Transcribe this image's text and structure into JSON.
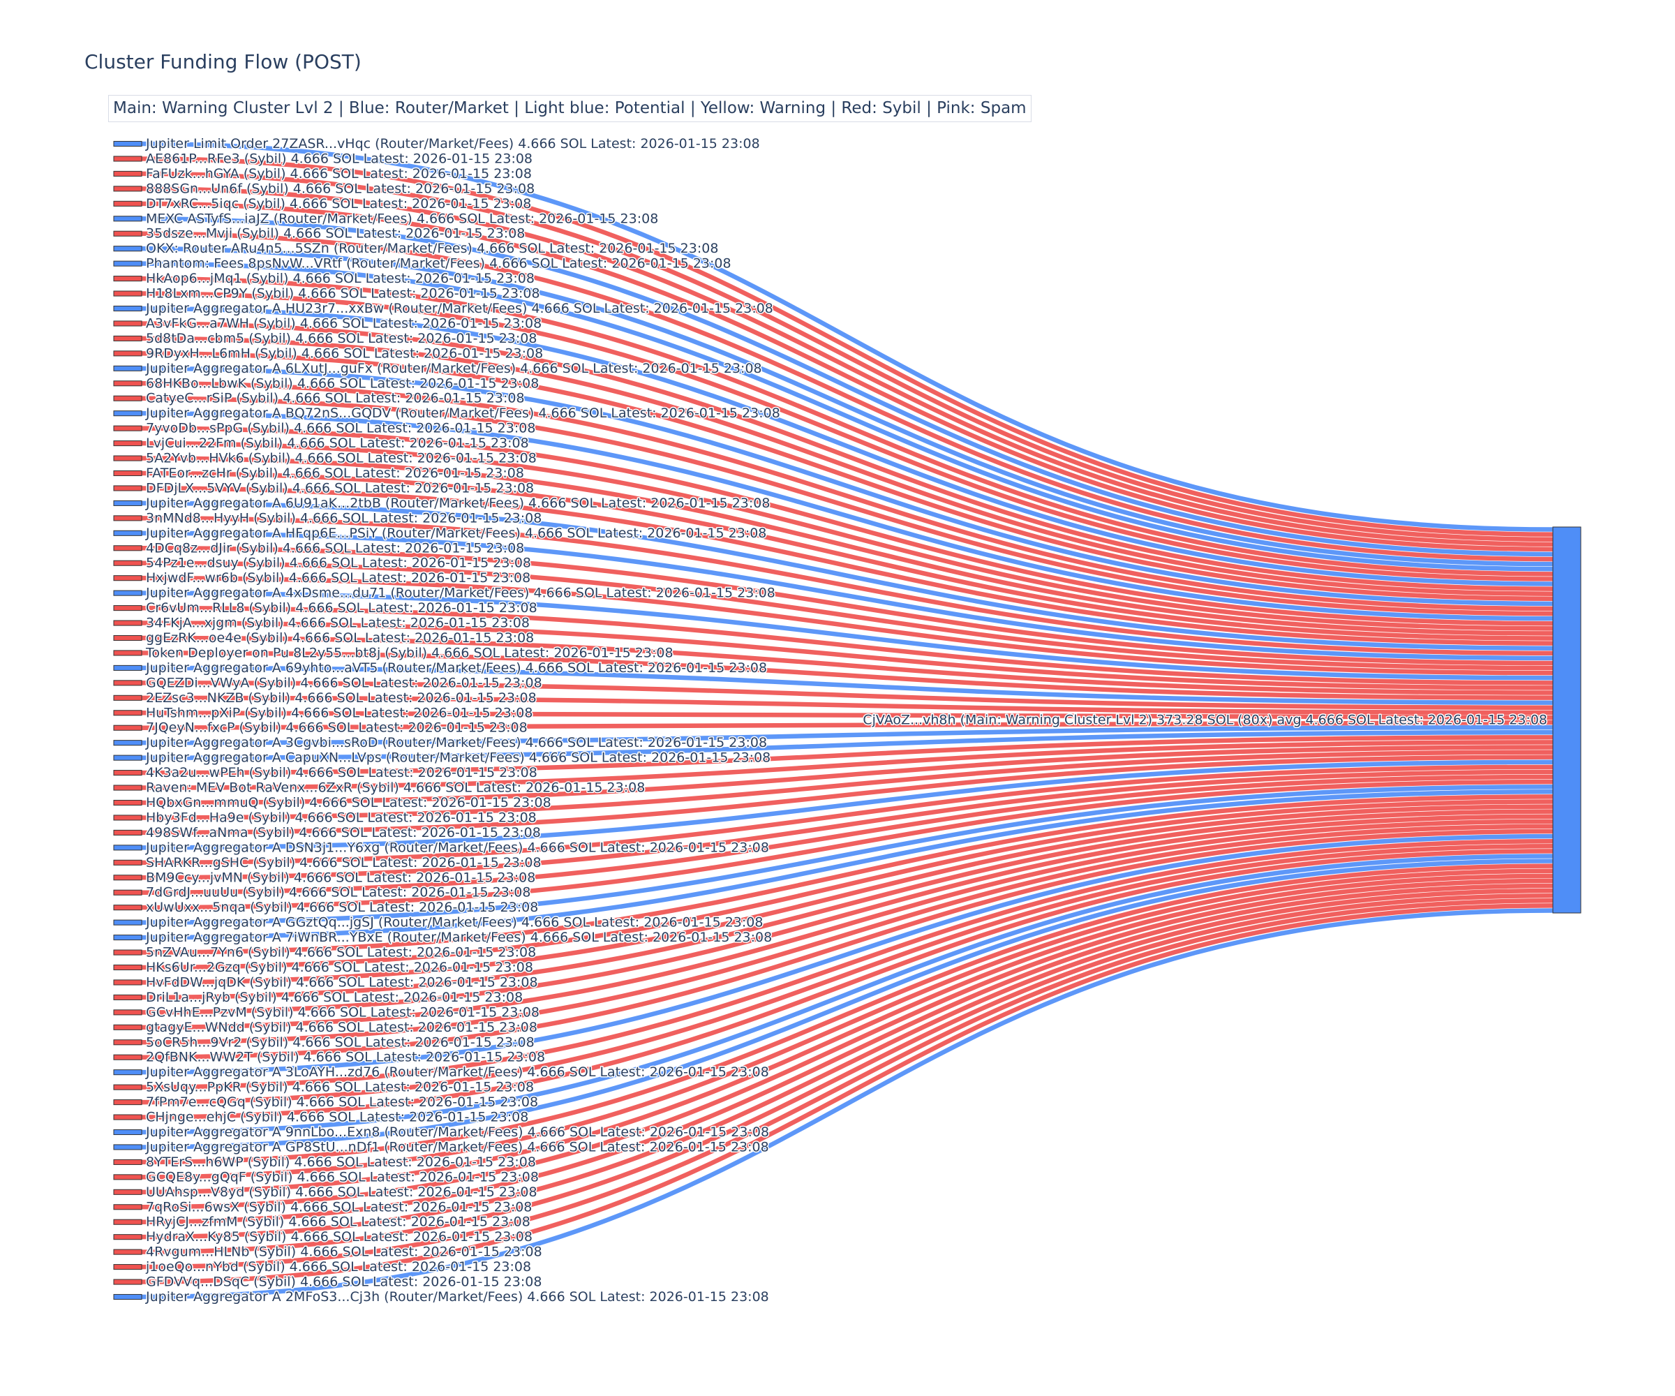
{
  "chart_data": {
    "type": "sankey",
    "title": "Cluster Funding Flow (POST)",
    "annotation": "Main: Warning Cluster Lvl 2  |  Blue: Router/Market | Light blue: Potential | Yellow: Warning | Red: Sybil | Pink: Spam",
    "colors": {
      "router": "#4f8ef7",
      "sybil": "#ef5350",
      "main": "#4f8ef7",
      "text": "#2a3f5f"
    },
    "link_value": 4.666,
    "target": {
      "label": "CjVAoZ...vh8h (Main: Warning Cluster Lvl 2) 373.28 SOL (80x) avg 4.666 SOL Latest: 2026-01-15 23:08",
      "category": "main"
    },
    "sources": [
      {
        "label": "Jupiter Limit Order  27ZASR...vHqc (Router/Market/Fees) 4.666 SOL Latest: 2026-01-15 23:08",
        "category": "router"
      },
      {
        "label": "AE861P...RFe3 (Sybil) 4.666 SOL Latest: 2026-01-15 23:08",
        "category": "sybil"
      },
      {
        "label": "FaFUzk...hGYA (Sybil) 4.666 SOL Latest: 2026-01-15 23:08",
        "category": "sybil"
      },
      {
        "label": "888SGn...Un6f (Sybil) 4.666 SOL Latest: 2026-01-15 23:08",
        "category": "sybil"
      },
      {
        "label": "DT7xRC...5iqc (Sybil) 4.666 SOL Latest: 2026-01-15 23:08",
        "category": "sybil"
      },
      {
        "label": "MEXC ASTyfS...iaJZ (Router/Market/Fees) 4.666 SOL Latest: 2026-01-15 23:08",
        "category": "router"
      },
      {
        "label": "35dsze...Mvji (Sybil) 4.666 SOL Latest: 2026-01-15 23:08",
        "category": "sybil"
      },
      {
        "label": "OKX: Router ARu4n5...5SZn (Router/Market/Fees) 4.666 SOL Latest: 2026-01-15 23:08",
        "category": "router"
      },
      {
        "label": "Phantom: Fees 8psNvW...VRtf (Router/Market/Fees) 4.666 SOL Latest: 2026-01-15 23:08",
        "category": "router"
      },
      {
        "label": "HkAop6...jMq1 (Sybil) 4.666 SOL Latest: 2026-01-15 23:08",
        "category": "sybil"
      },
      {
        "label": "H18Lxm...CP9Y (Sybil) 4.666 SOL Latest: 2026-01-15 23:08",
        "category": "sybil"
      },
      {
        "label": "Jupiter Aggregator A HU23r7...xxBw (Router/Market/Fees) 4.666 SOL Latest: 2026-01-15 23:08",
        "category": "router"
      },
      {
        "label": "A3vFkG...a7WH (Sybil) 4.666 SOL Latest: 2026-01-15 23:08",
        "category": "sybil"
      },
      {
        "label": "5d8tDa...cbm5 (Sybil) 4.666 SOL Latest: 2026-01-15 23:08",
        "category": "sybil"
      },
      {
        "label": "9RDyxH...L6mH (Sybil) 4.666 SOL Latest: 2026-01-15 23:08",
        "category": "sybil"
      },
      {
        "label": "Jupiter Aggregator A 6LXutJ...guFx (Router/Market/Fees) 4.666 SOL Latest: 2026-01-15 23:08",
        "category": "router"
      },
      {
        "label": "68HKBo...LbwK (Sybil) 4.666 SOL Latest: 2026-01-15 23:08",
        "category": "sybil"
      },
      {
        "label": "CatyeC...rSiP (Sybil) 4.666 SOL Latest: 2026-01-15 23:08",
        "category": "sybil"
      },
      {
        "label": "Jupiter Aggregator A BQ72nS...GQDV (Router/Market/Fees) 4.666 SOL Latest: 2026-01-15 23:08",
        "category": "router"
      },
      {
        "label": "7yvoDb...sPpG (Sybil) 4.666 SOL Latest: 2026-01-15 23:08",
        "category": "sybil"
      },
      {
        "label": "LvjCui...22Fm (Sybil) 4.666 SOL Latest: 2026-01-15 23:08",
        "category": "sybil"
      },
      {
        "label": "5A2Yvb...HVk6 (Sybil) 4.666 SOL Latest: 2026-01-15 23:08",
        "category": "sybil"
      },
      {
        "label": "FATEor...zcHr (Sybil) 4.666 SOL Latest: 2026-01-15 23:08",
        "category": "sybil"
      },
      {
        "label": "DFDjLX...5VYV (Sybil) 4.666 SOL Latest: 2026-01-15 23:08",
        "category": "sybil"
      },
      {
        "label": "Jupiter Aggregator A 6U91aK...2tbB (Router/Market/Fees) 4.666 SOL Latest: 2026-01-15 23:08",
        "category": "router"
      },
      {
        "label": "3nMNd8...HyyH (Sybil) 4.666 SOL Latest: 2026-01-15 23:08",
        "category": "sybil"
      },
      {
        "label": "Jupiter Aggregator A HFqp6E...PSiY (Router/Market/Fees) 4.666 SOL Latest: 2026-01-15 23:08",
        "category": "router"
      },
      {
        "label": "4DCq8z...dJir (Sybil) 4.666 SOL Latest: 2026-01-15 23:08",
        "category": "sybil"
      },
      {
        "label": "54Pz1e...dsuy (Sybil) 4.666 SOL Latest: 2026-01-15 23:08",
        "category": "sybil"
      },
      {
        "label": "HxjwdF...wr6b (Sybil) 4.666 SOL Latest: 2026-01-15 23:08",
        "category": "sybil"
      },
      {
        "label": "Jupiter Aggregator A 4xDsme...du71 (Router/Market/Fees) 4.666 SOL Latest: 2026-01-15 23:08",
        "category": "router"
      },
      {
        "label": "Cr6vUm...RLL8 (Sybil) 4.666 SOL Latest: 2026-01-15 23:08",
        "category": "sybil"
      },
      {
        "label": "34FKjA...xjgm (Sybil) 4.666 SOL Latest: 2026-01-15 23:08",
        "category": "sybil"
      },
      {
        "label": "ggEzRK...oe4e (Sybil) 4.666 SOL Latest: 2026-01-15 23:08",
        "category": "sybil"
      },
      {
        "label": "Token Deployer on Pu 8L2y55...bt8j (Sybil) 4.666 SOL Latest: 2026-01-15 23:08",
        "category": "sybil"
      },
      {
        "label": "Jupiter Aggregator A 69yhto...aVT5 (Router/Market/Fees) 4.666 SOL Latest: 2026-01-15 23:08",
        "category": "router"
      },
      {
        "label": "GQEZDi...VWyA (Sybil) 4.666 SOL Latest: 2026-01-15 23:08",
        "category": "sybil"
      },
      {
        "label": "2EZsc3...NKZB (Sybil) 4.666 SOL Latest: 2026-01-15 23:08",
        "category": "sybil"
      },
      {
        "label": "HuTshm...pXiP (Sybil) 4.666 SOL Latest: 2026-01-15 23:08",
        "category": "sybil"
      },
      {
        "label": "7JQeyN...fxcP (Sybil) 4.666 SOL Latest: 2026-01-15 23:08",
        "category": "sybil"
      },
      {
        "label": "Jupiter Aggregator A 3Cgvbi...sRoD (Router/Market/Fees) 4.666 SOL Latest: 2026-01-15 23:08",
        "category": "router"
      },
      {
        "label": "Jupiter Aggregator A CapuXN...LVps (Router/Market/Fees) 4.666 SOL Latest: 2026-01-15 23:08",
        "category": "router"
      },
      {
        "label": "4K3a2u...wPEh (Sybil) 4.666 SOL Latest: 2026-01-15 23:08",
        "category": "sybil"
      },
      {
        "label": "Raven: MEV Bot RaVenx...6ZxR (Sybil) 4.666 SOL Latest: 2026-01-15 23:08",
        "category": "sybil"
      },
      {
        "label": "HQbxGn...mmuQ (Sybil) 4.666 SOL Latest: 2026-01-15 23:08",
        "category": "sybil"
      },
      {
        "label": "Hby3Fd...Ha9e (Sybil) 4.666 SOL Latest: 2026-01-15 23:08",
        "category": "sybil"
      },
      {
        "label": "498SWf...aNma (Sybil) 4.666 SOL Latest: 2026-01-15 23:08",
        "category": "sybil"
      },
      {
        "label": "Jupiter Aggregator A DSN3j1...Y6xg (Router/Market/Fees) 4.666 SOL Latest: 2026-01-15 23:08",
        "category": "router"
      },
      {
        "label": "SHARKR...gSHC (Sybil) 4.666 SOL Latest: 2026-01-15 23:08",
        "category": "sybil"
      },
      {
        "label": "BM9Ccy...jvMN (Sybil) 4.666 SOL Latest: 2026-01-15 23:08",
        "category": "sybil"
      },
      {
        "label": "7dGrdJ...uuUu (Sybil) 4.666 SOL Latest: 2026-01-15 23:08",
        "category": "sybil"
      },
      {
        "label": "xUwUxx...5nqa (Sybil) 4.666 SOL Latest: 2026-01-15 23:08",
        "category": "sybil"
      },
      {
        "label": "Jupiter Aggregator A GGztQq...jgSJ (Router/Market/Fees) 4.666 SOL Latest: 2026-01-15 23:08",
        "category": "router"
      },
      {
        "label": "Jupiter Aggregator A 7iWnBR...YBxE (Router/Market/Fees) 4.666 SOL Latest: 2026-01-15 23:08",
        "category": "router"
      },
      {
        "label": "5nZVAu...7Yn6 (Sybil) 4.666 SOL Latest: 2026-01-15 23:08",
        "category": "sybil"
      },
      {
        "label": "HKs6Ur...2Gzq (Sybil) 4.666 SOL Latest: 2026-01-15 23:08",
        "category": "sybil"
      },
      {
        "label": "HvFdDW...jqDK (Sybil) 4.666 SOL Latest: 2026-01-15 23:08",
        "category": "sybil"
      },
      {
        "label": "DriL1a...jRyb (Sybil) 4.666 SOL Latest: 2026-01-15 23:08",
        "category": "sybil"
      },
      {
        "label": "GCvHhE...PzvM (Sybil) 4.666 SOL Latest: 2026-01-15 23:08",
        "category": "sybil"
      },
      {
        "label": "gtagyE...WNdd (Sybil) 4.666 SOL Latest: 2026-01-15 23:08",
        "category": "sybil"
      },
      {
        "label": "5oCR5h...9Vr2 (Sybil) 4.666 SOL Latest: 2026-01-15 23:08",
        "category": "sybil"
      },
      {
        "label": "2QfBNK...WW2T (Sybil) 4.666 SOL Latest: 2026-01-15 23:08",
        "category": "sybil"
      },
      {
        "label": "Jupiter Aggregator A 3LoAYH...zd76 (Router/Market/Fees) 4.666 SOL Latest: 2026-01-15 23:08",
        "category": "router"
      },
      {
        "label": "5XsUqy...PpKR (Sybil) 4.666 SOL Latest: 2026-01-15 23:08",
        "category": "sybil"
      },
      {
        "label": "7fPm7e...cQGq (Sybil) 4.666 SOL Latest: 2026-01-15 23:08",
        "category": "sybil"
      },
      {
        "label": "CHjnge...ehjC (Sybil) 4.666 SOL Latest: 2026-01-15 23:08",
        "category": "sybil"
      },
      {
        "label": "Jupiter Aggregator A 9nnLbo...Exn8 (Router/Market/Fees) 4.666 SOL Latest: 2026-01-15 23:08",
        "category": "router"
      },
      {
        "label": "Jupiter Aggregator A GP8StU...nDf1 (Router/Market/Fees) 4.666 SOL Latest: 2026-01-15 23:08",
        "category": "router"
      },
      {
        "label": "8YTErS...h6WP (Sybil) 4.666 SOL Latest: 2026-01-15 23:08",
        "category": "sybil"
      },
      {
        "label": "GCQE8y...gQqF (Sybil) 4.666 SOL Latest: 2026-01-15 23:08",
        "category": "sybil"
      },
      {
        "label": "UUAhsp...V8yd (Sybil) 4.666 SOL Latest: 2026-01-15 23:08",
        "category": "sybil"
      },
      {
        "label": "7qRoSi...6wsX (Sybil) 4.666 SOL Latest: 2026-01-15 23:08",
        "category": "sybil"
      },
      {
        "label": "HRyjCJ...zfmM (Sybil) 4.666 SOL Latest: 2026-01-15 23:08",
        "category": "sybil"
      },
      {
        "label": "HydraX...Ky85 (Sybil) 4.666 SOL Latest: 2026-01-15 23:08",
        "category": "sybil"
      },
      {
        "label": "4Rvgum...HLNb (Sybil) 4.666 SOL Latest: 2026-01-15 23:08",
        "category": "sybil"
      },
      {
        "label": "j1oeQo...nYbd (Sybil) 4.666 SOL Latest: 2026-01-15 23:08",
        "category": "sybil"
      },
      {
        "label": "GFDVVq...DSqC (Sybil) 4.666 SOL Latest: 2026-01-15 23:08",
        "category": "sybil"
      },
      {
        "label": "Jupiter Aggregator A 2MFoS3...Cj3h (Router/Market/Fees) 4.666 SOL Latest: 2026-01-15 23:08",
        "category": "router"
      }
    ]
  }
}
